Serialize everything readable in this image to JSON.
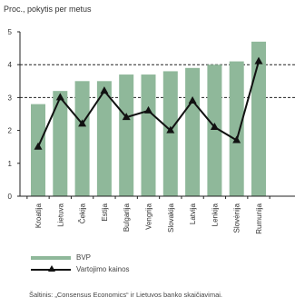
{
  "chart_data": {
    "type": "bar",
    "title": "Proc., pokytis per metus",
    "xlabel": "",
    "ylabel": "",
    "ylim": [
      0,
      5
    ],
    "yticks": [
      0,
      1,
      2,
      3,
      4,
      5
    ],
    "gridlines_at": [
      3,
      4
    ],
    "grid": "dashed-partial",
    "categories": [
      "Kroatija",
      "Lietuva",
      "Čekija",
      "Estija",
      "Bulgarija",
      "Vengrija",
      "Slovakija",
      "Latvija",
      "Lenkija",
      "Slovėnija",
      "Rumunija"
    ],
    "series": [
      {
        "name": "BVP",
        "kind": "bar",
        "color": "#8fb89a",
        "values": [
          2.8,
          3.2,
          3.5,
          3.5,
          3.7,
          3.7,
          3.8,
          3.9,
          4.0,
          4.1,
          4.7
        ]
      },
      {
        "name": "Vartojimo kainos",
        "kind": "line",
        "marker": "triangle",
        "color": "#111111",
        "values": [
          1.5,
          3.0,
          2.2,
          3.2,
          2.4,
          2.6,
          2.0,
          2.9,
          2.1,
          1.7,
          4.1
        ]
      }
    ],
    "legend": "bottom-left"
  },
  "source": "Šaltinis: „Consensus Economics“ ir Lietuvos banko skaičiavimai."
}
